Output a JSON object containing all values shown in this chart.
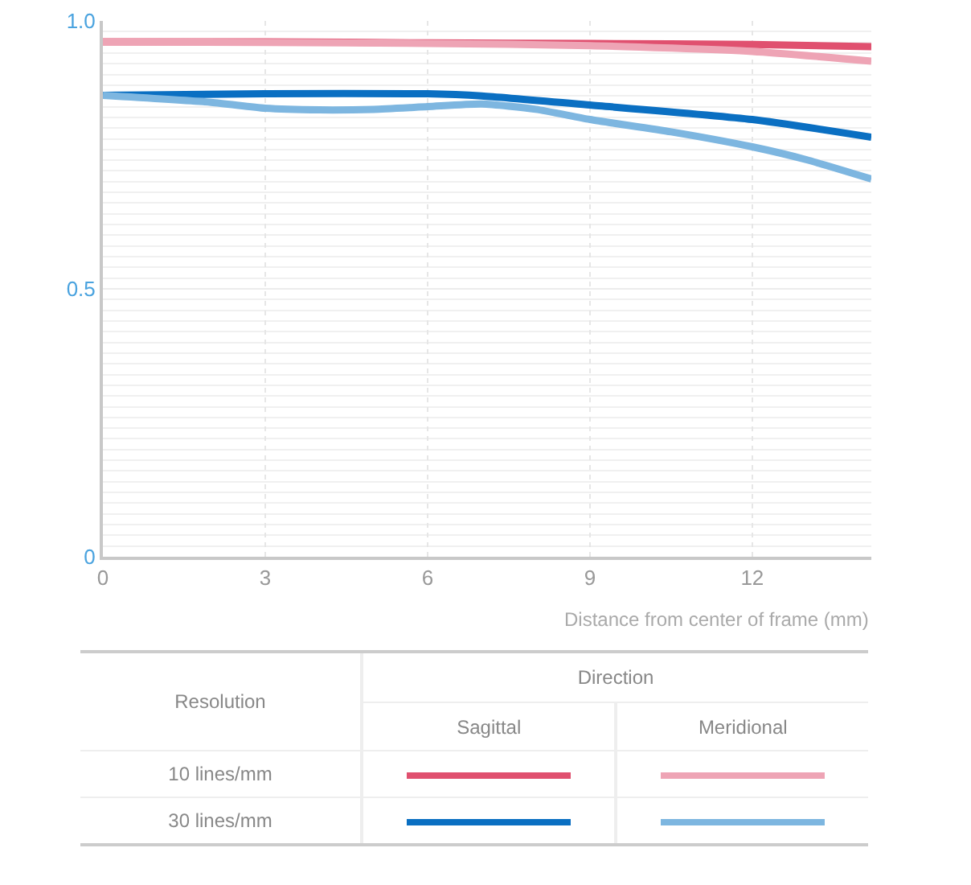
{
  "chart_data": {
    "type": "line",
    "xlabel": "Distance from center of frame (mm)",
    "xlim": [
      0,
      14.2
    ],
    "xticks": [
      0,
      3,
      6,
      9,
      12
    ],
    "ylim": [
      0,
      1.0
    ],
    "yticks": [
      0,
      0.5,
      {
        "value": 1.0,
        "label": "1.0"
      }
    ],
    "grid": true,
    "marker": "none",
    "line_style": "solid",
    "annotations": [
      "Resolution",
      "Direction",
      "Sagittal",
      "Meridional",
      "10 lines/mm",
      "30 lines/mm"
    ],
    "series": [
      {
        "color": "#e0506f",
        "x": [
          0,
          3,
          6,
          9,
          12,
          14.2
        ],
        "values": [
          0.961,
          0.961,
          0.959,
          0.958,
          0.956,
          0.952
        ]
      },
      {
        "color": "#eea4b5",
        "x": [
          0,
          3,
          6,
          9,
          12,
          14.2
        ],
        "values": [
          0.961,
          0.96,
          0.958,
          0.954,
          0.943,
          0.925
        ]
      },
      {
        "color": "#0a6fc2",
        "x": [
          0,
          3,
          6,
          7,
          9,
          12,
          14.2
        ],
        "values": [
          0.861,
          0.864,
          0.864,
          0.86,
          0.843,
          0.816,
          0.783
        ]
      },
      {
        "color": "#7db6e0",
        "x": [
          0,
          2,
          3,
          4,
          5,
          6,
          7,
          8,
          9,
          10.5,
          12,
          13,
          14.2
        ],
        "values": [
          0.861,
          0.848,
          0.837,
          0.834,
          0.835,
          0.84,
          0.845,
          0.835,
          0.816,
          0.793,
          0.765,
          0.741,
          0.705
        ]
      }
    ]
  }
}
